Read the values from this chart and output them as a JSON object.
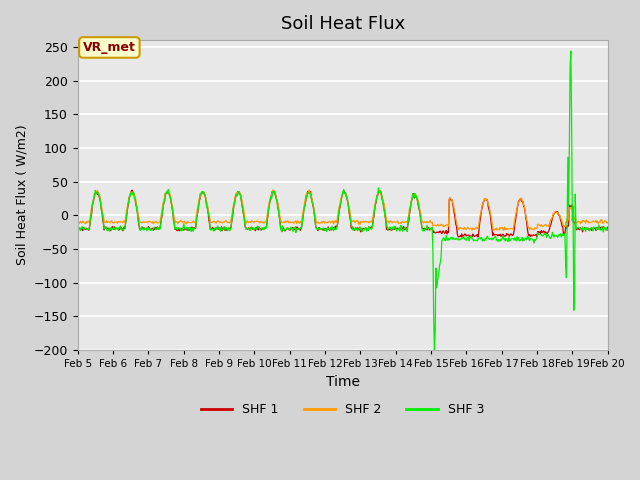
{
  "title": "Soil Heat Flux",
  "xlabel": "Time",
  "ylabel": "Soil Heat Flux ( W/m2)",
  "ylim": [
    -200,
    260
  ],
  "yticks": [
    -200,
    -150,
    -100,
    -50,
    0,
    50,
    100,
    150,
    200,
    250
  ],
  "colors": {
    "SHF 1": "#cc0000",
    "SHF 2": "#ff9900",
    "SHF 3": "#00ee00"
  },
  "legend_labels": [
    "SHF 1",
    "SHF 2",
    "SHF 3"
  ],
  "annotation_text": "VR_met",
  "annotation_bg": "#ffffcc",
  "annotation_border": "#cc9900",
  "x_tick_labels": [
    "Feb 5",
    "Feb 6",
    "Feb 7",
    "Feb 8",
    "Feb 9",
    "Feb 10",
    "Feb 11",
    "Feb 12",
    "Feb 13",
    "Feb 14",
    "Feb 15",
    "Feb 16",
    "Feb 17",
    "Feb 18",
    "Feb 19",
    "Feb 20"
  ],
  "num_days": 15
}
